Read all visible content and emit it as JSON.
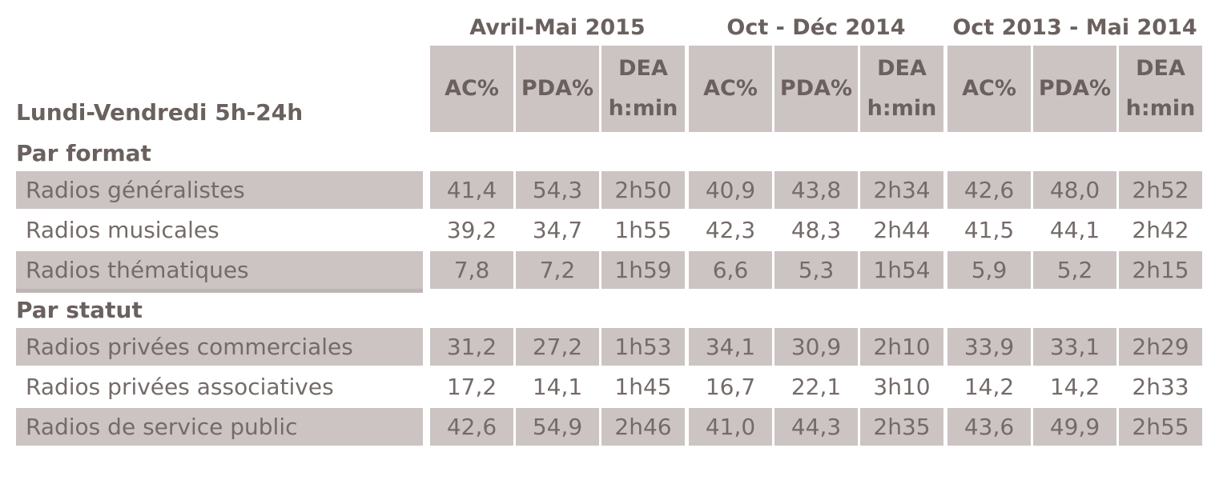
{
  "colors": {
    "cell_bg": "#ccc4c3",
    "heading_text": "#6a615f",
    "body_text": "#746b69",
    "label_shadow": "#beb6b5",
    "page_bg": "#ffffff"
  },
  "chart_data": {
    "type": "table",
    "title": "Lundi-Vendredi 5h-24h",
    "column_groups": [
      "Avril-Mai 2015",
      "Oct - Déc 2014",
      "Oct 2013 - Mai 2014"
    ],
    "sub_columns": [
      "AC%",
      "PDA%",
      "DEA h:min"
    ],
    "sections": [
      {
        "name": "Par format",
        "rows": [
          {
            "label": "Radios généralistes",
            "values": [
              "41,4",
              "54,3",
              "2h50",
              "40,9",
              "43,8",
              "2h34",
              "42,6",
              "48,0",
              "2h52"
            ]
          },
          {
            "label": "Radios musicales",
            "values": [
              "39,2",
              "34,7",
              "1h55",
              "42,3",
              "48,3",
              "2h44",
              "41,5",
              "44,1",
              "2h42"
            ]
          },
          {
            "label": "Radios thématiques",
            "values": [
              "7,8",
              "7,2",
              "1h59",
              "6,6",
              "5,3",
              "1h54",
              "5,9",
              "5,2",
              "2h15"
            ]
          }
        ]
      },
      {
        "name": "Par statut",
        "rows": [
          {
            "label": "Radios privées commerciales",
            "values": [
              "31,2",
              "27,2",
              "1h53",
              "34,1",
              "30,9",
              "2h10",
              "33,9",
              "33,1",
              "2h29"
            ]
          },
          {
            "label": "Radios privées associatives",
            "values": [
              "17,2",
              "14,1",
              "1h45",
              "16,7",
              "22,1",
              "3h10",
              "14,2",
              "14,2",
              "2h33"
            ]
          },
          {
            "label": "Radios de service public",
            "values": [
              "42,6",
              "54,9",
              "2h46",
              "41,0",
              "44,3",
              "2h35",
              "43,6",
              "49,9",
              "2h55"
            ]
          }
        ]
      }
    ],
    "layout_hints": {
      "shaded_row_pattern": "alternate starting shaded within each section",
      "value_alignment": "center",
      "decimal_separator": ","
    }
  }
}
